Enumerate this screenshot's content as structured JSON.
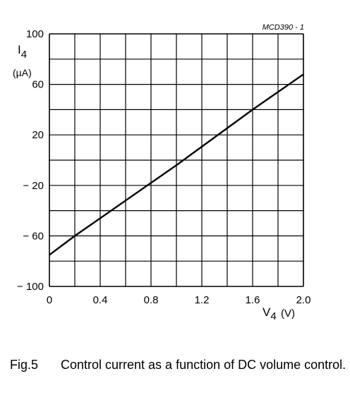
{
  "chart_data": {
    "type": "line",
    "figure_code": "MCD390 - 1",
    "ylabel_main": "I",
    "ylabel_sub": "4",
    "yunit": "(µA)",
    "xlabel_main": "V",
    "xlabel_sub": "4",
    "xunit": "(V)",
    "xlim": [
      0,
      2.0
    ],
    "ylim": [
      -100,
      100
    ],
    "grid": true,
    "x_ticks": [
      "0",
      "0.4",
      "0.8",
      "1.2",
      "1.6",
      "2.0"
    ],
    "x_tick_values": [
      0,
      0.4,
      0.8,
      1.2,
      1.6,
      2.0
    ],
    "y_ticks": [
      "100",
      "60",
      "20",
      "− 20",
      "− 60",
      "− 100"
    ],
    "y_tick_values": [
      100,
      60,
      20,
      -20,
      -60,
      -100
    ],
    "series": [
      {
        "x": [
          0,
          0.2,
          0.8,
          1.0,
          1.6,
          2.0
        ],
        "y": [
          -75,
          -60,
          -18,
          -4,
          40,
          68
        ]
      }
    ]
  },
  "caption": {
    "label": "Fig.5",
    "text": "Control current as a function of DC volume control."
  }
}
